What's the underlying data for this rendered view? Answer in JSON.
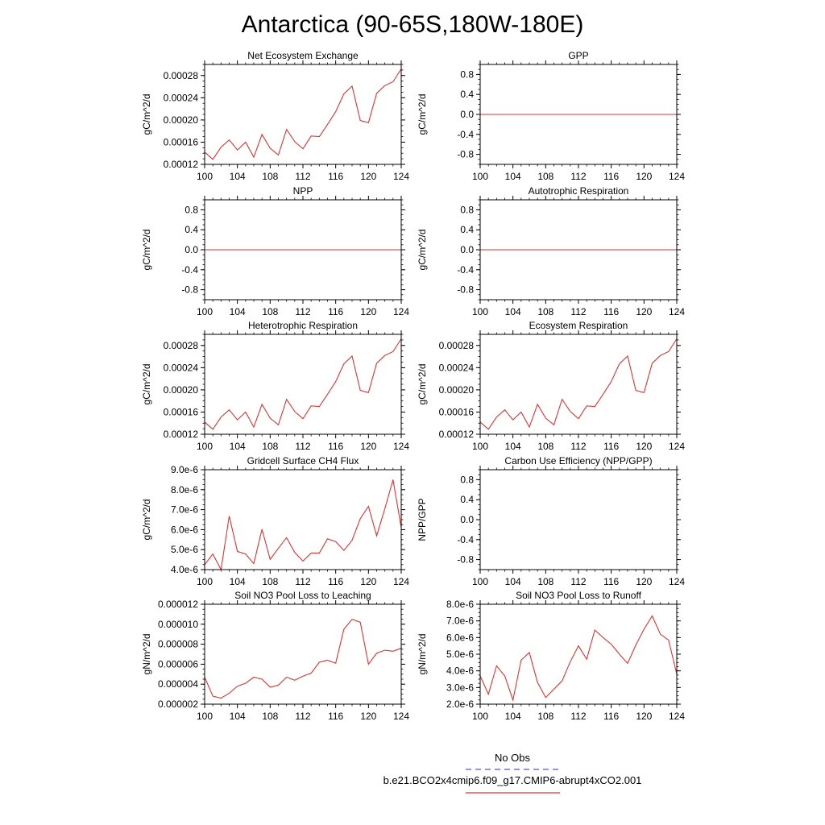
{
  "figure": {
    "title": "Antarctica (90-65S,180W-180E)",
    "legend": {
      "obs_label": "No Obs",
      "obs_color": "#5555cc",
      "case_label": "b.e21.BCO2x4cmip6.f09_g17.CMIP6-abrupt4xCO2.001",
      "case_color": "#dd3333"
    }
  },
  "chart_data": [
    {
      "id": "nee",
      "type": "line",
      "title": "Net Ecosystem Exchange",
      "xlabel": "",
      "ylabel": "gC/m^2/d",
      "xlim": [
        100,
        124
      ],
      "ylim": [
        0.00012,
        0.0003
      ],
      "xticks": [
        "100",
        "104",
        "108",
        "112",
        "116",
        "120",
        "124"
      ],
      "yticks": [
        {
          "v": 0.00012,
          "label": "0.00012"
        },
        {
          "v": 0.00016,
          "label": "0.00016"
        },
        {
          "v": 0.0002,
          "label": "0.00020"
        },
        {
          "v": 0.00024,
          "label": "0.00024"
        },
        {
          "v": 0.00028,
          "label": "0.00028"
        }
      ],
      "series": [
        {
          "name": "b.e21.BCO2x4cmip6.f09_g17.CMIP6-abrupt4xCO2.001",
          "x": [
            100,
            101,
            102,
            103,
            104,
            105,
            106,
            107,
            108,
            109,
            110,
            111,
            112,
            113,
            114,
            115,
            116,
            117,
            118,
            119,
            120,
            121,
            122,
            123,
            124
          ],
          "values": [
            0.000142,
            0.000129,
            0.000151,
            0.000164,
            0.000146,
            0.00016,
            0.000133,
            0.000174,
            0.000149,
            0.000137,
            0.000183,
            0.000161,
            0.000148,
            0.000171,
            0.00017,
            0.000192,
            0.000215,
            0.000247,
            0.000261,
            0.000199,
            0.000195,
            0.000248,
            0.000262,
            0.000269,
            0.000292
          ]
        }
      ]
    },
    {
      "id": "gpp",
      "type": "line",
      "title": "GPP",
      "xlabel": "",
      "ylabel": "gC/m^2/d",
      "xlim": [
        100,
        124
      ],
      "ylim": [
        -1.0,
        1.0
      ],
      "xticks": [
        "100",
        "104",
        "108",
        "112",
        "116",
        "120",
        "124"
      ],
      "yticks": [
        {
          "v": -0.8,
          "label": "-0.8"
        },
        {
          "v": -0.4,
          "label": "-0.4"
        },
        {
          "v": 0.0,
          "label": "0.0"
        },
        {
          "v": 0.4,
          "label": "0.4"
        },
        {
          "v": 0.8,
          "label": "0.8"
        }
      ],
      "series": [
        {
          "name": "b.e21.BCO2x4cmip6.f09_g17.CMIP6-abrupt4xCO2.001",
          "x": [
            100,
            124
          ],
          "values": [
            0,
            0
          ]
        }
      ]
    },
    {
      "id": "npp",
      "type": "line",
      "title": "NPP",
      "xlabel": "",
      "ylabel": "gC/m^2/d",
      "xlim": [
        100,
        124
      ],
      "ylim": [
        -1.0,
        1.0
      ],
      "xticks": [
        "100",
        "104",
        "108",
        "112",
        "116",
        "120",
        "124"
      ],
      "yticks": [
        {
          "v": -0.8,
          "label": "-0.8"
        },
        {
          "v": -0.4,
          "label": "-0.4"
        },
        {
          "v": 0.0,
          "label": "0.0"
        },
        {
          "v": 0.4,
          "label": "0.4"
        },
        {
          "v": 0.8,
          "label": "0.8"
        }
      ],
      "series": [
        {
          "name": "b.e21.BCO2x4cmip6.f09_g17.CMIP6-abrupt4xCO2.001",
          "x": [
            100,
            124
          ],
          "values": [
            0,
            0
          ]
        }
      ]
    },
    {
      "id": "ar",
      "type": "line",
      "title": "Autotrophic Respiration",
      "xlabel": "",
      "ylabel": "gC/m^2/d",
      "xlim": [
        100,
        124
      ],
      "ylim": [
        -1.0,
        1.0
      ],
      "xticks": [
        "100",
        "104",
        "108",
        "112",
        "116",
        "120",
        "124"
      ],
      "yticks": [
        {
          "v": -0.8,
          "label": "-0.8"
        },
        {
          "v": -0.4,
          "label": "-0.4"
        },
        {
          "v": 0.0,
          "label": "0.0"
        },
        {
          "v": 0.4,
          "label": "0.4"
        },
        {
          "v": 0.8,
          "label": "0.8"
        }
      ],
      "series": [
        {
          "name": "b.e21.BCO2x4cmip6.f09_g17.CMIP6-abrupt4xCO2.001",
          "x": [
            100,
            124
          ],
          "values": [
            0,
            0
          ]
        }
      ]
    },
    {
      "id": "hr",
      "type": "line",
      "title": "Heterotrophic Respiration",
      "xlabel": "",
      "ylabel": "gC/m^2/d",
      "xlim": [
        100,
        124
      ],
      "ylim": [
        0.00012,
        0.0003
      ],
      "xticks": [
        "100",
        "104",
        "108",
        "112",
        "116",
        "120",
        "124"
      ],
      "yticks": [
        {
          "v": 0.00012,
          "label": "0.00012"
        },
        {
          "v": 0.00016,
          "label": "0.00016"
        },
        {
          "v": 0.0002,
          "label": "0.00020"
        },
        {
          "v": 0.00024,
          "label": "0.00024"
        },
        {
          "v": 0.00028,
          "label": "0.00028"
        }
      ],
      "series": [
        {
          "name": "b.e21.BCO2x4cmip6.f09_g17.CMIP6-abrupt4xCO2.001",
          "x": [
            100,
            101,
            102,
            103,
            104,
            105,
            106,
            107,
            108,
            109,
            110,
            111,
            112,
            113,
            114,
            115,
            116,
            117,
            118,
            119,
            120,
            121,
            122,
            123,
            124
          ],
          "values": [
            0.000142,
            0.000129,
            0.000151,
            0.000164,
            0.000146,
            0.00016,
            0.000133,
            0.000174,
            0.000149,
            0.000137,
            0.000183,
            0.000161,
            0.000148,
            0.000171,
            0.00017,
            0.000192,
            0.000215,
            0.000247,
            0.000261,
            0.000199,
            0.000195,
            0.000248,
            0.000262,
            0.000269,
            0.000292
          ]
        }
      ]
    },
    {
      "id": "er",
      "type": "line",
      "title": "Ecosystem Respiration",
      "xlabel": "",
      "ylabel": "gC/m^2/d",
      "xlim": [
        100,
        124
      ],
      "ylim": [
        0.00012,
        0.0003
      ],
      "xticks": [
        "100",
        "104",
        "108",
        "112",
        "116",
        "120",
        "124"
      ],
      "yticks": [
        {
          "v": 0.00012,
          "label": "0.00012"
        },
        {
          "v": 0.00016,
          "label": "0.00016"
        },
        {
          "v": 0.0002,
          "label": "0.00020"
        },
        {
          "v": 0.00024,
          "label": "0.00024"
        },
        {
          "v": 0.00028,
          "label": "0.00028"
        }
      ],
      "series": [
        {
          "name": "b.e21.BCO2x4cmip6.f09_g17.CMIP6-abrupt4xCO2.001",
          "x": [
            100,
            101,
            102,
            103,
            104,
            105,
            106,
            107,
            108,
            109,
            110,
            111,
            112,
            113,
            114,
            115,
            116,
            117,
            118,
            119,
            120,
            121,
            122,
            123,
            124
          ],
          "values": [
            0.000142,
            0.000129,
            0.000151,
            0.000164,
            0.000146,
            0.00016,
            0.000133,
            0.000174,
            0.000149,
            0.000137,
            0.000183,
            0.000161,
            0.000148,
            0.000171,
            0.00017,
            0.000192,
            0.000215,
            0.000247,
            0.000261,
            0.000199,
            0.000195,
            0.000248,
            0.000262,
            0.000269,
            0.000292
          ]
        }
      ]
    },
    {
      "id": "ch4",
      "type": "line",
      "title": "Gridcell Surface CH4 Flux",
      "xlabel": "",
      "ylabel": "gC/m^2/d",
      "xlim": [
        100,
        124
      ],
      "ylim": [
        4e-06,
        9e-06
      ],
      "xticks": [
        "100",
        "104",
        "108",
        "112",
        "116",
        "120",
        "124"
      ],
      "yticks": [
        {
          "v": 4e-06,
          "label": "4.0e-6"
        },
        {
          "v": 5e-06,
          "label": "5.0e-6"
        },
        {
          "v": 6e-06,
          "label": "6.0e-6"
        },
        {
          "v": 7e-06,
          "label": "7.0e-6"
        },
        {
          "v": 8e-06,
          "label": "8.0e-6"
        },
        {
          "v": 9e-06,
          "label": "9.0e-6"
        }
      ],
      "series": [
        {
          "name": "b.e21.BCO2x4cmip6.f09_g17.CMIP6-abrupt4xCO2.001",
          "x": [
            100,
            101,
            102,
            103,
            104,
            105,
            106,
            107,
            108,
            109,
            110,
            111,
            112,
            113,
            114,
            115,
            116,
            117,
            118,
            119,
            120,
            121,
            122,
            123,
            124
          ],
          "values": [
            4.25e-06,
            4.78e-06,
            4e-06,
            6.68e-06,
            4.91e-06,
            4.78e-06,
            4.3e-06,
            6.02e-06,
            4.51e-06,
            5.07e-06,
            5.6e-06,
            4.86e-06,
            4.43e-06,
            4.83e-06,
            4.83e-06,
            5.54e-06,
            5.4e-06,
            4.96e-06,
            5.47e-06,
            6.55e-06,
            7.17e-06,
            5.69e-06,
            7.05e-06,
            8.5e-06,
            6.1e-06
          ]
        }
      ]
    },
    {
      "id": "cue",
      "type": "line",
      "title": "Carbon Use Efficiency (NPP/GPP)",
      "xlabel": "",
      "ylabel": "NPP/GPP",
      "xlim": [
        100,
        124
      ],
      "ylim": [
        -1.0,
        1.0
      ],
      "xticks": [
        "100",
        "104",
        "108",
        "112",
        "116",
        "120",
        "124"
      ],
      "yticks": [
        {
          "v": -0.8,
          "label": "-0.8"
        },
        {
          "v": -0.4,
          "label": "-0.4"
        },
        {
          "v": 0.0,
          "label": "0.0"
        },
        {
          "v": 0.4,
          "label": "0.4"
        },
        {
          "v": 0.8,
          "label": "0.8"
        }
      ],
      "series": []
    },
    {
      "id": "no3_leach",
      "type": "line",
      "title": "Soil NO3 Pool Loss to Leaching",
      "xlabel": "",
      "ylabel": "gN/m^2/d",
      "xlim": [
        100,
        124
      ],
      "ylim": [
        2e-06,
        1.2e-05
      ],
      "xticks": [
        "100",
        "104",
        "108",
        "112",
        "116",
        "120",
        "124"
      ],
      "yticks": [
        {
          "v": 2e-06,
          "label": "0.000002"
        },
        {
          "v": 4e-06,
          "label": "0.000004"
        },
        {
          "v": 6e-06,
          "label": "0.000006"
        },
        {
          "v": 8e-06,
          "label": "0.000008"
        },
        {
          "v": 1e-05,
          "label": "0.000010"
        },
        {
          "v": 1.2e-05,
          "label": "0.000012"
        }
      ],
      "series": [
        {
          "name": "b.e21.BCO2x4cmip6.f09_g17.CMIP6-abrupt4xCO2.001",
          "x": [
            100,
            101,
            102,
            103,
            104,
            105,
            106,
            107,
            108,
            109,
            110,
            111,
            112,
            113,
            114,
            115,
            116,
            117,
            118,
            119,
            120,
            121,
            122,
            123,
            124
          ],
          "values": [
            4.7e-06,
            2.8e-06,
            2.6e-06,
            3.1e-06,
            3.8e-06,
            4.1e-06,
            4.7e-06,
            4.5e-06,
            3.7e-06,
            3.9e-06,
            4.7e-06,
            4.4e-06,
            4.8e-06,
            5.1e-06,
            6.2e-06,
            6.4e-06,
            6.1e-06,
            9.5e-06,
            1.05e-05,
            1.02e-05,
            6e-06,
            7.1e-06,
            7.4e-06,
            7.3e-06,
            7.6e-06
          ]
        }
      ]
    },
    {
      "id": "no3_runoff",
      "type": "line",
      "title": "Soil NO3 Pool Loss to Runoff",
      "xlabel": "",
      "ylabel": "gN/m^2/d",
      "xlim": [
        100,
        124
      ],
      "ylim": [
        2e-06,
        8e-06
      ],
      "xticks": [
        "100",
        "104",
        "108",
        "112",
        "116",
        "120",
        "124"
      ],
      "yticks": [
        {
          "v": 2e-06,
          "label": "2.0e-6"
        },
        {
          "v": 3e-06,
          "label": "3.0e-6"
        },
        {
          "v": 4e-06,
          "label": "4.0e-6"
        },
        {
          "v": 5e-06,
          "label": "5.0e-6"
        },
        {
          "v": 6e-06,
          "label": "6.0e-6"
        },
        {
          "v": 7e-06,
          "label": "7.0e-6"
        },
        {
          "v": 8e-06,
          "label": "8.0e-6"
        }
      ],
      "series": [
        {
          "name": "b.e21.BCO2x4cmip6.f09_g17.CMIP6-abrupt4xCO2.001",
          "x": [
            100,
            101,
            102,
            103,
            104,
            105,
            106,
            107,
            108,
            109,
            110,
            111,
            112,
            113,
            114,
            115,
            116,
            117,
            118,
            119,
            120,
            121,
            122,
            123,
            124
          ],
          "values": [
            3.7e-06,
            2.6e-06,
            4.3e-06,
            3.7e-06,
            2.25e-06,
            4.65e-06,
            5.1e-06,
            3.3e-06,
            2.4e-06,
            2.9e-06,
            3.4e-06,
            4.55e-06,
            5.5e-06,
            4.7e-06,
            6.45e-06,
            6e-06,
            5.6e-06,
            5e-06,
            4.45e-06,
            5.55e-06,
            6.5e-06,
            7.3e-06,
            6.2e-06,
            5.85e-06,
            3.8e-06
          ]
        }
      ]
    }
  ]
}
